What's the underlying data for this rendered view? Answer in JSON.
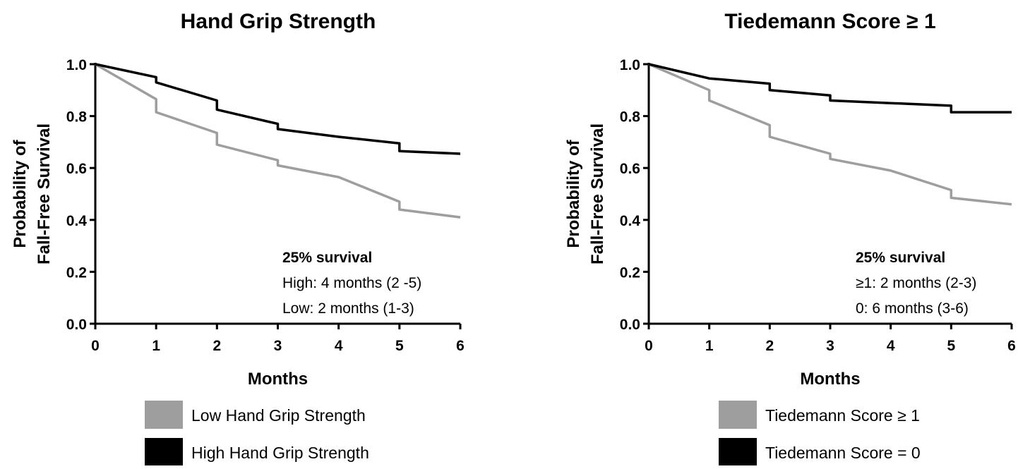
{
  "chart_data": [
    {
      "type": "line",
      "title": "Hand Grip Strength",
      "xlabel": "Months",
      "ylabel": [
        "Probability of",
        "Fall-Free Survival"
      ],
      "xlim": [
        0,
        6
      ],
      "ylim": [
        0,
        1
      ],
      "x_ticks": [
        "0",
        "1",
        "2",
        "3",
        "4",
        "5",
        "6"
      ],
      "y_ticks": [
        "0.0",
        "0.2",
        "0.4",
        "0.6",
        "0.8",
        "1.0"
      ],
      "annotation": {
        "heading": "25% survival",
        "lines": [
          "High: 4 months (2 -5)",
          "Low: 2 months (1-3)"
        ]
      },
      "series": [
        {
          "name": "Low Hand Grip Strength",
          "color": "#9e9e9e",
          "points": [
            [
              0,
              1.0
            ],
            [
              1,
              0.865
            ],
            [
              1,
              0.815
            ],
            [
              2,
              0.735
            ],
            [
              2,
              0.69
            ],
            [
              3,
              0.63
            ],
            [
              3,
              0.61
            ],
            [
              4,
              0.565
            ],
            [
              5,
              0.47
            ],
            [
              5,
              0.44
            ],
            [
              6,
              0.41
            ]
          ]
        },
        {
          "name": "High Hand Grip Strength",
          "color": "#000000",
          "points": [
            [
              0,
              1.0
            ],
            [
              1,
              0.95
            ],
            [
              1,
              0.93
            ],
            [
              2,
              0.86
            ],
            [
              2,
              0.825
            ],
            [
              3,
              0.77
            ],
            [
              3,
              0.75
            ],
            [
              4,
              0.72
            ],
            [
              5,
              0.695
            ],
            [
              5,
              0.665
            ],
            [
              6,
              0.655
            ]
          ]
        }
      ]
    },
    {
      "type": "line",
      "title": "Tiedemann Score ≥ 1",
      "xlabel": "Months",
      "ylabel": [
        "Probability of",
        "Fall-Free Survival"
      ],
      "xlim": [
        0,
        6
      ],
      "ylim": [
        0,
        1
      ],
      "x_ticks": [
        "0",
        "1",
        "2",
        "3",
        "4",
        "5",
        "6"
      ],
      "y_ticks": [
        "0.0",
        "0.2",
        "0.4",
        "0.6",
        "0.8",
        "1.0"
      ],
      "annotation": {
        "heading": "25% survival",
        "lines": [
          "≥1: 2 months (2-3)",
          "0: 6 months (3-6)"
        ]
      },
      "series": [
        {
          "name": "Tiedemann Score ≥ 1",
          "color": "#9e9e9e",
          "points": [
            [
              0,
              1.0
            ],
            [
              1,
              0.9
            ],
            [
              1,
              0.86
            ],
            [
              2,
              0.765
            ],
            [
              2,
              0.72
            ],
            [
              3,
              0.655
            ],
            [
              3,
              0.635
            ],
            [
              4,
              0.59
            ],
            [
              5,
              0.515
            ],
            [
              5,
              0.485
            ],
            [
              6,
              0.46
            ]
          ]
        },
        {
          "name": "Tiedemann Score = 0",
          "color": "#000000",
          "points": [
            [
              0,
              1.0
            ],
            [
              1,
              0.945
            ],
            [
              2,
              0.925
            ],
            [
              2,
              0.9
            ],
            [
              3,
              0.88
            ],
            [
              3,
              0.86
            ],
            [
              4,
              0.85
            ],
            [
              5,
              0.84
            ],
            [
              5,
              0.815
            ],
            [
              6,
              0.815
            ]
          ]
        }
      ]
    }
  ]
}
